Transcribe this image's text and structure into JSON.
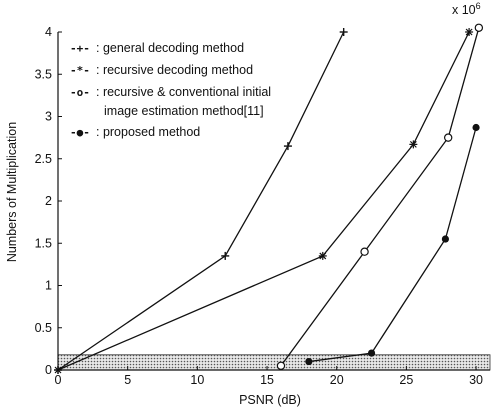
{
  "chart_data": {
    "type": "line",
    "xlabel": "PSNR (dB)",
    "ylabel": "Numbers of Multiplication",
    "exponent_label": "x 10",
    "exponent_power": "6",
    "xlim": [
      0,
      31
    ],
    "ylim": [
      0,
      4
    ],
    "xticks": [
      0,
      5,
      10,
      15,
      20,
      25,
      30
    ],
    "yticks": [
      0,
      0.5,
      1,
      1.5,
      2,
      2.5,
      3,
      3.5,
      4
    ],
    "shaded_band": [
      0,
      0.18
    ],
    "series": [
      {
        "symbol": "-+-",
        "name": ": general decoding method",
        "marker": "plus",
        "points": [
          [
            0,
            0
          ],
          [
            12,
            1.35
          ],
          [
            16.5,
            2.65
          ],
          [
            20.5,
            4.0
          ]
        ]
      },
      {
        "symbol": "-*-",
        "name": ": recursive decoding method",
        "marker": "star",
        "points": [
          [
            0,
            0
          ],
          [
            19,
            1.35
          ],
          [
            25.5,
            2.67
          ],
          [
            29.5,
            4.0
          ]
        ]
      },
      {
        "symbol": "-o-",
        "name": ": recursive & conventional initial",
        "name2": "image estimation method[11]",
        "marker": "circle",
        "points": [
          [
            16,
            0.05
          ],
          [
            22,
            1.4
          ],
          [
            28,
            2.75
          ],
          [
            30.2,
            4.05
          ]
        ]
      },
      {
        "symbol": "-●-",
        "name": ": proposed method",
        "marker": "dot",
        "points": [
          [
            18,
            0.1
          ],
          [
            22.5,
            0.2
          ],
          [
            27.8,
            1.55
          ],
          [
            30,
            2.87
          ]
        ]
      }
    ]
  }
}
